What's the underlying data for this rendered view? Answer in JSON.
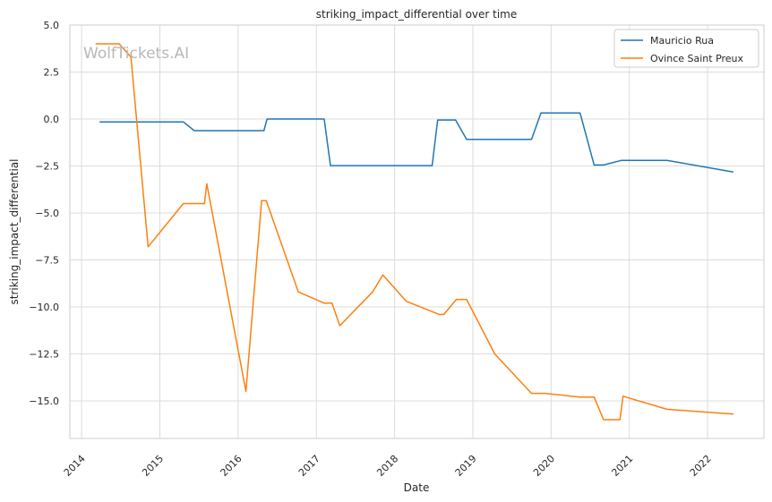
{
  "chart_data": {
    "type": "line",
    "title": "striking_impact_differential over time",
    "xlabel": "Date",
    "ylabel": "striking_impact_differential",
    "watermark": "WolfTickets.AI",
    "xlim": [
      2013.85,
      2022.72
    ],
    "ylim": [
      -17.0,
      5.0
    ],
    "x_ticks": [
      2014,
      2015,
      2016,
      2017,
      2018,
      2019,
      2020,
      2021,
      2022
    ],
    "x_tick_labels": [
      "2014",
      "2015",
      "2016",
      "2017",
      "2018",
      "2019",
      "2020",
      "2021",
      "2022"
    ],
    "y_ticks": [
      5.0,
      2.5,
      0.0,
      -2.5,
      -5.0,
      -7.5,
      -10.0,
      -12.5,
      -15.0
    ],
    "y_tick_labels": [
      "5.0",
      "2.5",
      "0.0",
      "−2.5",
      "−5.0",
      "−7.5",
      "−10.0",
      "−12.5",
      "−15.0"
    ],
    "grid": true,
    "legend_position": "top-right",
    "series": [
      {
        "name": "Mauricio Rua",
        "color": "#1f77b4",
        "x": [
          2014.23,
          2015.3,
          2015.44,
          2016.33,
          2016.37,
          2017.1,
          2017.18,
          2018.48,
          2018.55,
          2018.78,
          2018.92,
          2019.75,
          2019.87,
          2020.37,
          2020.55,
          2020.67,
          2020.9,
          2021.48,
          2022.33
        ],
        "y": [
          -0.15,
          -0.15,
          -0.62,
          -0.62,
          0.0,
          0.0,
          -2.48,
          -2.48,
          -0.05,
          -0.05,
          -1.08,
          -1.08,
          0.32,
          0.32,
          -2.45,
          -2.45,
          -2.2,
          -2.2,
          -2.82
        ]
      },
      {
        "name": "Ovince Saint Preux",
        "color": "#ff7f0e",
        "x": [
          2014.18,
          2014.48,
          2014.63,
          2014.85,
          2015.3,
          2015.57,
          2015.6,
          2016.1,
          2016.3,
          2016.36,
          2016.77,
          2017.1,
          2017.2,
          2017.3,
          2017.72,
          2017.85,
          2018.15,
          2018.57,
          2018.63,
          2018.79,
          2018.92,
          2019.28,
          2019.75,
          2019.92,
          2020.37,
          2020.55,
          2020.67,
          2020.88,
          2020.92,
          2021.48,
          2022.33
        ],
        "y": [
          4.0,
          4.0,
          3.3,
          -6.8,
          -4.5,
          -4.5,
          -3.45,
          -14.5,
          -4.35,
          -4.35,
          -9.2,
          -9.8,
          -9.8,
          -11.0,
          -9.2,
          -8.3,
          -9.7,
          -10.4,
          -10.4,
          -9.6,
          -9.6,
          -12.5,
          -14.6,
          -14.6,
          -14.8,
          -14.8,
          -16.0,
          -16.0,
          -14.75,
          -15.45,
          -15.7
        ]
      }
    ]
  }
}
